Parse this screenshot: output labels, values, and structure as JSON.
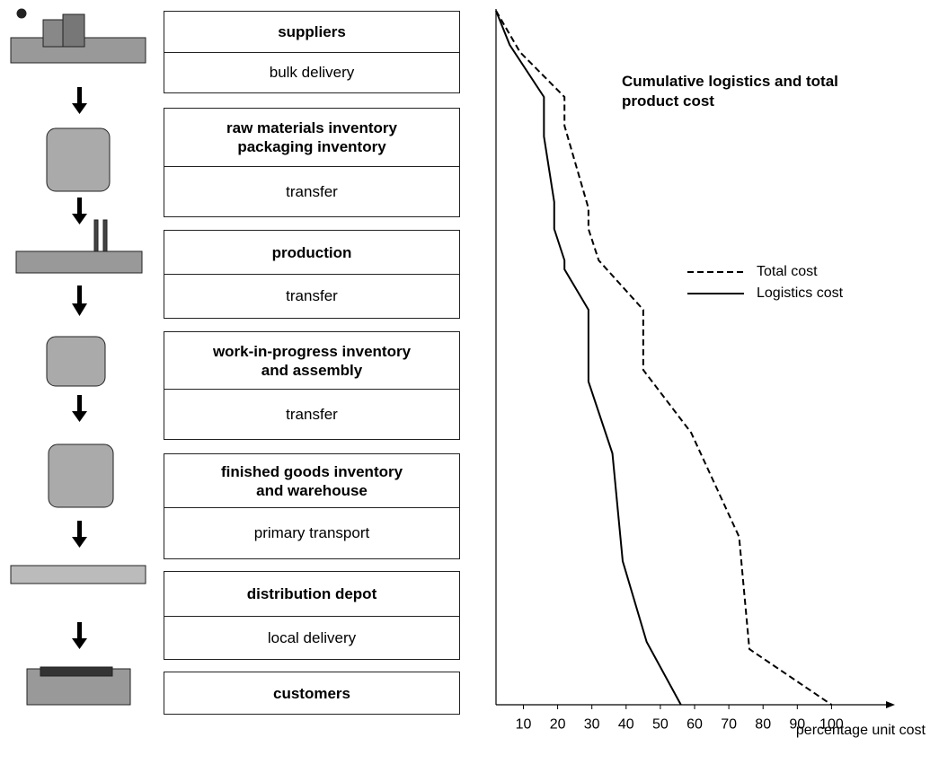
{
  "flow": {
    "stages": [
      {
        "name": [
          "suppliers"
        ],
        "link": "bulk delivery"
      },
      {
        "name": [
          "raw materials inventory",
          "packaging inventory"
        ],
        "link": "transfer"
      },
      {
        "name": [
          "production"
        ],
        "link": "transfer"
      },
      {
        "name": [
          "work-in-progress inventory",
          "and assembly"
        ],
        "link": "transfer"
      },
      {
        "name": [
          "finished goods inventory",
          "and warehouse"
        ],
        "link": "primary transport"
      },
      {
        "name": [
          "distribution depot"
        ],
        "link": "local delivery"
      },
      {
        "name": [
          "customers"
        ]
      }
    ]
  },
  "chart_data": {
    "type": "line",
    "title": "Cumulative logistics and total product cost",
    "x_label": "percentage unit cost",
    "xlim": [
      2,
      118
    ],
    "xticks": [
      10,
      20,
      30,
      40,
      50,
      60,
      70,
      80,
      90,
      100
    ],
    "legend": "upper right",
    "series": [
      {
        "name": "Total cost",
        "color": "#000000",
        "dashed": true,
        "values": [
          2,
          9,
          22,
          22,
          29,
          29,
          32,
          45,
          45,
          59,
          73,
          76,
          100
        ]
      },
      {
        "name": "Logistics cost",
        "color": "#000000",
        "dashed": false,
        "values": [
          2,
          6,
          16,
          16,
          19,
          19,
          22,
          22,
          29,
          29,
          36,
          39,
          46,
          56
        ]
      }
    ]
  }
}
